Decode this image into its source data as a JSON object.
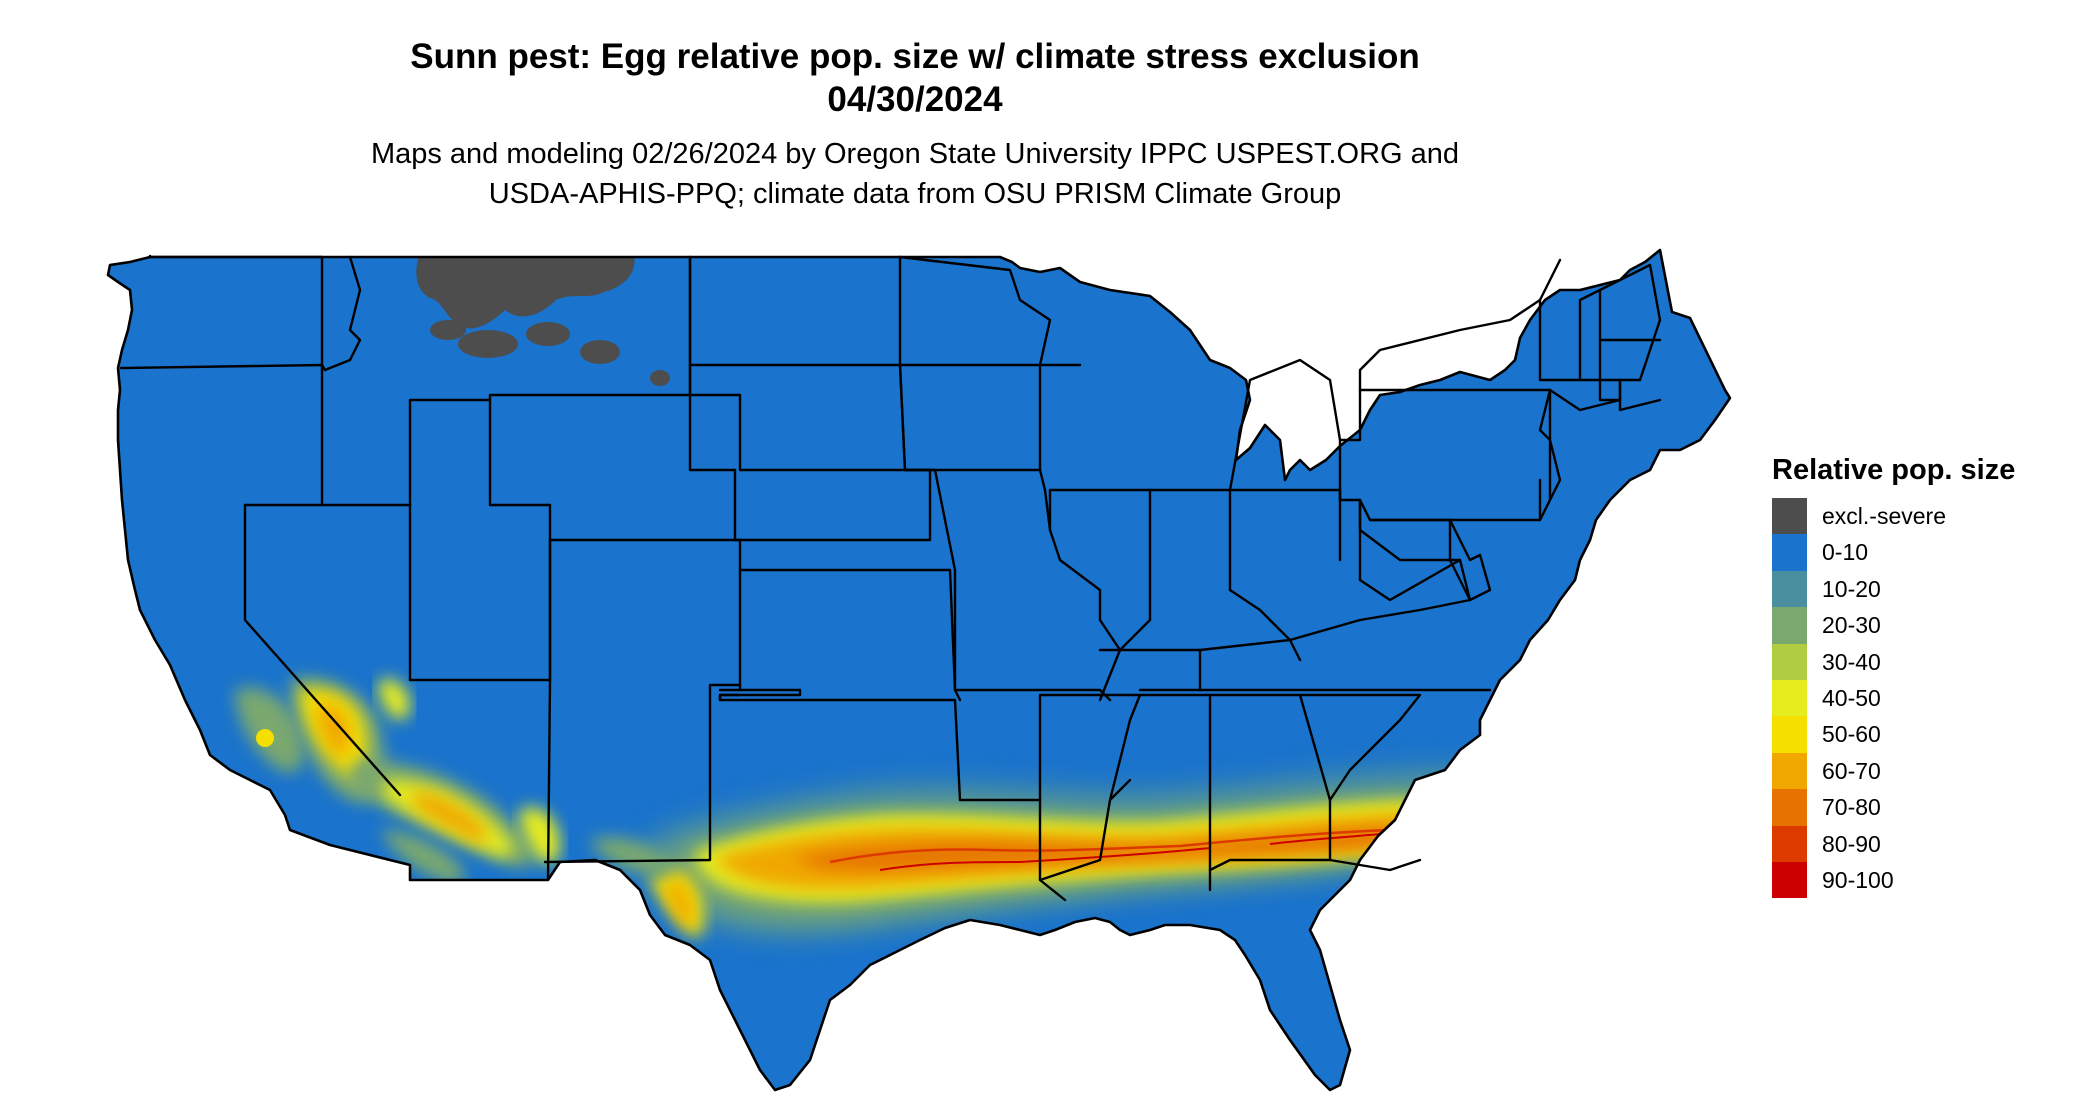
{
  "title": {
    "line1": "Sunn pest: Egg relative pop. size w/ climate stress exclusion",
    "line2": "04/30/2024"
  },
  "subtitle": {
    "line1": "Maps and modeling 02/26/2024 by Oregon State University IPPC USPEST.ORG and",
    "line2": "USDA-APHIS-PPQ; climate data from OSU PRISM Climate Group"
  },
  "legend": {
    "title": "Relative pop. size",
    "items": [
      {
        "label": "excl.-severe",
        "color": "#4d4d4d"
      },
      {
        "label": "0-10",
        "color": "#1a73cc"
      },
      {
        "label": "10-20",
        "color": "#4a8fa0"
      },
      {
        "label": "20-30",
        "color": "#7aa86e"
      },
      {
        "label": "30-40",
        "color": "#b0cc40"
      },
      {
        "label": "40-50",
        "color": "#e6ec1e"
      },
      {
        "label": "50-60",
        "color": "#f5df00"
      },
      {
        "label": "60-70",
        "color": "#f0a800"
      },
      {
        "label": "70-80",
        "color": "#e67300"
      },
      {
        "label": "80-90",
        "color": "#dd3a00"
      },
      {
        "label": "90-100",
        "color": "#cc0000"
      }
    ]
  },
  "map": {
    "region": "contiguous-us",
    "base_color": "#1a73cc",
    "border_color": "#000000"
  }
}
